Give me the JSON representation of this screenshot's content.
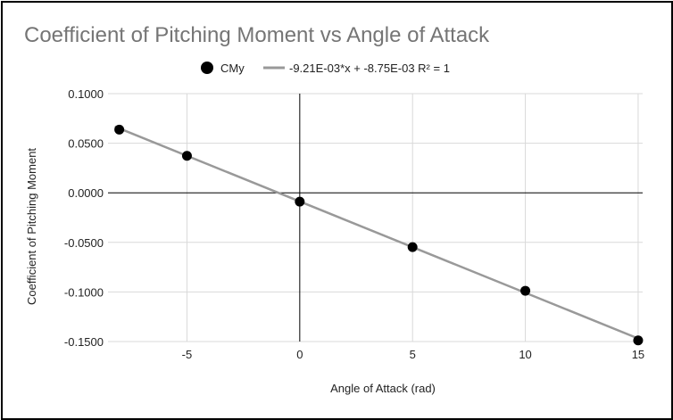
{
  "chart_data": {
    "type": "scatter",
    "title": "Coefficient of Pitching Moment vs Angle of Attack",
    "xlabel": "Angle of Attack (rad)",
    "ylabel": "Coefficient of Pitching Moment",
    "xlim": [
      -8.5,
      15.2
    ],
    "ylim": [
      -0.15,
      0.1
    ],
    "x_ticks": [
      -5,
      0,
      5,
      10,
      15
    ],
    "x_tick_labels": [
      "-5",
      "0",
      "5",
      "10",
      "15"
    ],
    "y_ticks": [
      0.1,
      0.05,
      0,
      -0.05,
      -0.1,
      -0.15
    ],
    "y_tick_labels": [
      "0.1000",
      "0.0500",
      "0.0000",
      "-0.0500",
      "-0.1000",
      "-0.1500"
    ],
    "grid": true,
    "legend_position": "top",
    "series": [
      {
        "name": "CMy",
        "marker": "circle",
        "color": "#000000",
        "points": [
          {
            "x": -8,
            "y": 0.0637
          },
          {
            "x": -5,
            "y": 0.0373
          },
          {
            "x": 0,
            "y": -0.0089
          },
          {
            "x": 5,
            "y": -0.0548
          },
          {
            "x": 10,
            "y": -0.0988
          },
          {
            "x": 15,
            "y": -0.1489
          }
        ]
      }
    ],
    "trendline": {
      "type": "linear",
      "color": "#999999",
      "slope": -0.00921,
      "intercept": -0.00875,
      "label": "-9.21E-03*x + -8.75E-03 R² = 1"
    }
  }
}
